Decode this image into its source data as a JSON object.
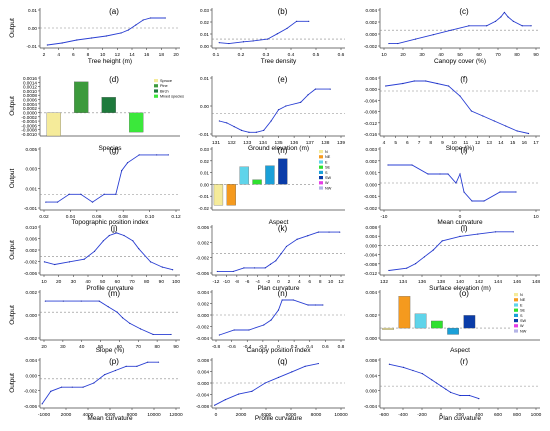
{
  "figure": {
    "chart_data": [
      {
        "panel": "(a)",
        "type": "line",
        "ylabel": "Output",
        "xlabel": "Tree height (m)",
        "xlim": [
          1,
          20
        ],
        "ylim": [
          -0.02,
          0.02
        ],
        "xticks": [
          "2",
          "4",
          "6",
          "8",
          "10",
          "12",
          "14",
          "16",
          "18",
          "20"
        ],
        "yticks": [
          "0.01",
          "0.00",
          "-0.01"
        ],
        "x": [
          2,
          4,
          6,
          8,
          10,
          12,
          13,
          14,
          15,
          16,
          18
        ],
        "y": [
          -0.017,
          -0.015,
          -0.012,
          -0.01,
          -0.008,
          -0.005,
          -0.002,
          0.003,
          0.008,
          0.01,
          0.01
        ]
      },
      {
        "panel": "(b)",
        "type": "line",
        "ylabel": "",
        "xlabel": "Tree density",
        "xlim": [
          0.05,
          0.6
        ],
        "ylim": [
          -0.01,
          0.035
        ],
        "xticks": [
          "0.1",
          "0.2",
          "0.3",
          "0.4",
          "0.5",
          "0.6"
        ],
        "yticks": [
          "0.03",
          "0.02",
          "0.01",
          "0.00"
        ],
        "x": [
          0.08,
          0.12,
          0.18,
          0.22,
          0.28,
          0.32,
          0.36,
          0.4,
          0.45
        ],
        "y": [
          -0.004,
          -0.005,
          -0.003,
          -0.002,
          0.0,
          0.006,
          0.012,
          0.02,
          0.02
        ]
      },
      {
        "panel": "(c)",
        "type": "line",
        "ylabel": "",
        "xlabel": "Canopy cover (%)",
        "xlim": [
          0,
          90
        ],
        "ylim": [
          -0.004,
          0.005
        ],
        "xticks": [
          "10",
          "20",
          "30",
          "40",
          "50",
          "60",
          "70",
          "80",
          "90"
        ],
        "yticks": [
          "0.004",
          "0.002",
          "0.000",
          "-0.002"
        ],
        "x": [
          5,
          10,
          20,
          30,
          40,
          50,
          60,
          65,
          68,
          70,
          72,
          75,
          80,
          85
        ],
        "y": [
          -0.003,
          -0.003,
          -0.002,
          -0.001,
          0.0,
          0.001,
          0.001,
          0.002,
          0.003,
          0.004,
          0.003,
          0.002,
          0.001,
          0.001
        ]
      },
      {
        "panel": "(d)",
        "type": "bar",
        "ylabel": "Output",
        "xlabel": "Species",
        "ylim": [
          -0.0012,
          0.0019
        ],
        "yticks": [
          "0.0016",
          "0.0014",
          "0.0012",
          "0.0010",
          "0.0008",
          "0.0006",
          "0.0004",
          "0.0002",
          "0.0000",
          "-0.0002",
          "-0.0004",
          "-0.0006",
          "-0.0008",
          "-0.0010"
        ],
        "categories": [
          "Spruce",
          "Pine",
          "Birch",
          "Mixed species"
        ],
        "values": [
          -0.0012,
          0.0016,
          0.0008,
          -0.001
        ],
        "colors": [
          "#f5eb9a",
          "#3c9a3c",
          "#1e7a3c",
          "#3be83b"
        ],
        "legend": [
          "Spruce",
          "Pine",
          "Birch",
          "Mixed species"
        ]
      },
      {
        "panel": "(e)",
        "type": "line",
        "ylabel": "",
        "xlabel": "Ground elevation (m)",
        "xlim": [
          130,
          139
        ],
        "ylim": [
          -0.012,
          0.02
        ],
        "xticks": [
          "131",
          "132",
          "133",
          "134",
          "135",
          "136",
          "137",
          "138",
          "139"
        ],
        "yticks": [
          "0.01",
          "0.00",
          "-0.01"
        ],
        "x": [
          130.5,
          131,
          131.5,
          132,
          132.5,
          133,
          133.5,
          134,
          134.5,
          135,
          136,
          136.5,
          137,
          138
        ],
        "y": [
          -0.004,
          -0.005,
          -0.007,
          -0.009,
          -0.01,
          -0.01,
          -0.009,
          -0.004,
          0.002,
          0.004,
          0.006,
          0.01,
          0.013,
          0.013
        ]
      },
      {
        "panel": "(f)",
        "type": "line",
        "ylabel": "",
        "xlabel": "Slope (%)",
        "xlim": [
          3,
          17
        ],
        "ylim": [
          -0.018,
          0.006
        ],
        "xticks": [
          "4",
          "5",
          "6",
          "7",
          "8",
          "9",
          "10",
          "11",
          "12",
          "13",
          "14",
          "15",
          "16",
          "17"
        ],
        "yticks": [
          "0.004",
          "0.000",
          "-0.004",
          "-0.008",
          "-0.012",
          "-0.016"
        ],
        "x": [
          3.5,
          5,
          6,
          7,
          8,
          9,
          10,
          11,
          12,
          13,
          14,
          15,
          16
        ],
        "y": [
          0.002,
          0.003,
          0.004,
          0.004,
          0.003,
          0.002,
          -0.002,
          -0.008,
          -0.01,
          -0.012,
          -0.014,
          -0.016,
          -0.017
        ]
      },
      {
        "panel": "(g)",
        "type": "line",
        "ylabel": "Output",
        "xlabel": "Topographic position index",
        "xlim": [
          0.01,
          0.13
        ],
        "ylim": [
          -0.002,
          0.006
        ],
        "xticks": [
          "0.02",
          "0.04",
          "0.06",
          "0.08",
          "0.10",
          "0.12"
        ],
        "yticks": [
          "0.005",
          "0.003",
          "0.001",
          "-0.001"
        ],
        "x": [
          0.015,
          0.025,
          0.035,
          0.045,
          0.055,
          0.065,
          0.075,
          0.08,
          0.085,
          0.095,
          0.11,
          0.12
        ],
        "y": [
          -0.001,
          -0.001,
          0.0,
          0.0,
          -0.001,
          0.0,
          0.0,
          0.003,
          0.004,
          0.005,
          0.005,
          0.005
        ]
      },
      {
        "panel": "(h)",
        "type": "bar",
        "ylabel": "",
        "xlabel": "Aspect",
        "ylim": [
          -0.022,
          0.032
        ],
        "yticks": [
          "0.03",
          "0.02",
          "0.01",
          "0.00",
          "-0.01",
          "-0.02"
        ],
        "categories": [
          "N",
          "NE",
          "E",
          "SE",
          "S",
          "SW",
          "W",
          "NW"
        ],
        "values": [
          -0.018,
          -0.018,
          0.015,
          0.004,
          0.016,
          0.022,
          0,
          0
        ],
        "colors": [
          "#f5eb9a",
          "#f59a1e",
          "#5fd4ea",
          "#2ee02e",
          "#1aa0d8",
          "#0a3ca8",
          "#e63ce6",
          "#b4b4e6"
        ],
        "legend": [
          "N",
          "NE",
          "E",
          "SE",
          "S",
          "SW",
          "W",
          "NW"
        ]
      },
      {
        "panel": "(i)",
        "type": "line",
        "ylabel": "",
        "xlabel": "Mean curvature",
        "xlim": [
          -20,
          20
        ],
        "ylim": [
          -0.003,
          0.004
        ],
        "xticks": [
          "-10",
          "0",
          "10"
        ],
        "yticks": [
          "0.003",
          "0.002",
          "0.001",
          "0.000",
          "-0.001",
          "-0.002"
        ],
        "x": [
          -18,
          -12,
          -8,
          -5,
          -3,
          -1,
          0,
          1,
          3,
          6,
          10,
          14
        ],
        "y": [
          0.002,
          0.002,
          0.001,
          0.001,
          0.001,
          0.0,
          0.001,
          -0.001,
          -0.002,
          -0.002,
          -0.001,
          -0.001
        ]
      },
      {
        "panel": "(j)",
        "type": "line",
        "ylabel": "Output",
        "xlabel": "Profile curvature",
        "xlim": [
          5,
          100
        ],
        "ylim": [
          -0.007,
          0.012
        ],
        "xticks": [
          "10",
          "20",
          "30",
          "40",
          "50",
          "60",
          "70",
          "80",
          "90",
          "100"
        ],
        "yticks": [
          "0.010",
          "0.006",
          "0.002",
          "-0.002",
          "-0.006"
        ],
        "x": [
          8,
          15,
          25,
          35,
          42,
          48,
          52,
          57,
          62,
          68,
          72,
          80,
          88,
          95
        ],
        "y": [
          -0.002,
          -0.003,
          -0.002,
          -0.001,
          0.002,
          0.006,
          0.008,
          0.009,
          0.008,
          0.006,
          0.003,
          -0.002,
          -0.004,
          -0.005
        ]
      },
      {
        "panel": "(k)",
        "type": "line",
        "ylabel": "",
        "xlabel": "Plan curvature",
        "xlim": [
          -12,
          13
        ],
        "ylim": [
          -0.006,
          0.008
        ],
        "xticks": [
          "-12",
          "-10",
          "-8",
          "-6",
          "-4",
          "-2",
          "0",
          "2",
          "4",
          "6",
          "8",
          "10",
          "12"
        ],
        "yticks": [
          "0.006",
          "0.002",
          "-0.002",
          "-0.006"
        ],
        "x": [
          -11,
          -8,
          -6,
          -4,
          -2,
          -1,
          0,
          1,
          2,
          4,
          6,
          8,
          10,
          12
        ],
        "y": [
          -0.005,
          -0.005,
          -0.004,
          -0.004,
          -0.004,
          -0.003,
          -0.002,
          0.0,
          0.002,
          0.004,
          0.005,
          0.006,
          0.006,
          0.006
        ]
      },
      {
        "panel": "(l)",
        "type": "line",
        "ylabel": "",
        "xlabel": "Surface elevation (m)",
        "xlim": [
          131,
          149
        ],
        "ylim": [
          -0.013,
          0.009
        ],
        "xticks": [
          "132",
          "134",
          "136",
          "138",
          "140",
          "142",
          "144",
          "146",
          "148"
        ],
        "yticks": [
          "0.008",
          "0.004",
          "0.000",
          "-0.004",
          "-0.008",
          "-0.012"
        ],
        "x": [
          132,
          134,
          135,
          136,
          137,
          138,
          140,
          142,
          144,
          146
        ],
        "y": [
          -0.011,
          -0.01,
          -0.008,
          -0.005,
          -0.002,
          0.002,
          0.004,
          0.005,
          0.006,
          0.006
        ]
      },
      {
        "panel": "(m)",
        "type": "line",
        "ylabel": "Output",
        "xlabel": "Slope (%)",
        "xlim": [
          12,
          90
        ],
        "ylim": [
          -0.005,
          0.004
        ],
        "xticks": [
          "20",
          "30",
          "40",
          "50",
          "60",
          "70",
          "80",
          "90"
        ],
        "yticks": [
          "0.002",
          "0.000",
          "-0.002"
        ],
        "x": [
          15,
          25,
          35,
          45,
          50,
          55,
          58,
          62,
          68,
          75,
          85
        ],
        "y": [
          0.002,
          0.002,
          0.002,
          0.002,
          0.001,
          0.0,
          -0.001,
          -0.002,
          -0.003,
          -0.004,
          -0.004
        ]
      },
      {
        "panel": "(n)",
        "type": "line",
        "ylabel": "",
        "xlabel": "Canopy position index",
        "xlim": [
          -0.9,
          0.9
        ],
        "ylim": [
          -0.005,
          0.005
        ],
        "xticks": [
          "-0.8",
          "-0.6",
          "-0.4",
          "-0.2",
          "0",
          "0.2",
          "0.4",
          "0.6",
          "0.8"
        ],
        "yticks": [
          "0.004",
          "0.002",
          "0.000",
          "-0.002",
          "-0.004"
        ],
        "x": [
          -0.8,
          -0.6,
          -0.4,
          -0.2,
          -0.1,
          0,
          0.05,
          0.2,
          0.4,
          0.5,
          0.6
        ],
        "y": [
          -0.004,
          -0.003,
          -0.003,
          -0.002,
          -0.001,
          0.001,
          0.003,
          0.003,
          0.002,
          0.002,
          0.002
        ]
      },
      {
        "panel": "(o)",
        "type": "bar",
        "ylabel": "",
        "xlabel": "Aspect",
        "ylim": [
          -0.0015,
          0.0048
        ],
        "yticks": [
          "0.004",
          "0.002",
          "0.000"
        ],
        "categories": [
          "N",
          "NE",
          "E",
          "SE",
          "S",
          "SW",
          "W",
          "NW"
        ],
        "values": [
          -0.0002,
          0.004,
          0.0018,
          0.0009,
          -0.0008,
          0.0016,
          0,
          0
        ],
        "colors": [
          "#f5eb9a",
          "#f59a1e",
          "#5fd4ea",
          "#2ee02e",
          "#1aa0d8",
          "#0a3ca8",
          "#e63ce6",
          "#b4b4e6"
        ],
        "legend": [
          "N",
          "NE",
          "E",
          "SE",
          "S",
          "SW",
          "W",
          "NW"
        ]
      },
      {
        "panel": "(p)",
        "type": "line",
        "ylabel": "Output",
        "xlabel": "Mean curvature",
        "xlim": [
          -1000,
          12000
        ],
        "ylim": [
          -0.007,
          0.005
        ],
        "xticks": [
          "-1000",
          "2000",
          "4000",
          "6000",
          "8000",
          "10000",
          "12000"
        ],
        "yticks": [
          "0.004",
          "0.000",
          "-0.002",
          "-0.006"
        ],
        "x": [
          -800,
          0,
          1000,
          2000,
          3000,
          4000,
          5000,
          6000,
          7000,
          8000,
          9000,
          10000
        ],
        "y": [
          -0.006,
          -0.003,
          -0.002,
          -0.002,
          -0.002,
          -0.001,
          0.001,
          0.002,
          0.003,
          0.003,
          0.004,
          0.004
        ]
      },
      {
        "panel": "(q)",
        "type": "line",
        "ylabel": "",
        "xlabel": "Profile curvature",
        "xlim": [
          0,
          10000
        ],
        "ylim": [
          -0.009,
          0.009
        ],
        "xticks": [
          "0",
          "2000",
          "4000",
          "6000",
          "8000",
          "10000"
        ],
        "yticks": [
          "0.008",
          "0.004",
          "0.000",
          "-0.004",
          "-0.008"
        ],
        "x": [
          200,
          1000,
          2000,
          3000,
          4000,
          5000,
          6000,
          7000,
          8000
        ],
        "y": [
          -0.008,
          -0.006,
          -0.004,
          -0.003,
          0.0,
          0.002,
          0.004,
          0.006,
          0.007
        ]
      },
      {
        "panel": "(r)",
        "type": "line",
        "ylabel": "",
        "xlabel": "Plan curvature",
        "xlim": [
          -650,
          1050
        ],
        "ylim": [
          -0.007,
          0.009
        ],
        "xticks": [
          "-600",
          "-400",
          "-200",
          "0",
          "200",
          "400",
          "600",
          "800",
          "1000"
        ],
        "yticks": [
          "0.008",
          "0.004",
          "0.000",
          "-0.004"
        ],
        "x": [
          -550,
          -400,
          -300,
          -200,
          -100,
          -50,
          0,
          50,
          100,
          200,
          300,
          400
        ],
        "y": [
          0.007,
          0.006,
          0.005,
          0.004,
          0.002,
          0.001,
          0.0,
          -0.001,
          -0.002,
          -0.003,
          -0.003,
          -0.004
        ]
      }
    ]
  }
}
